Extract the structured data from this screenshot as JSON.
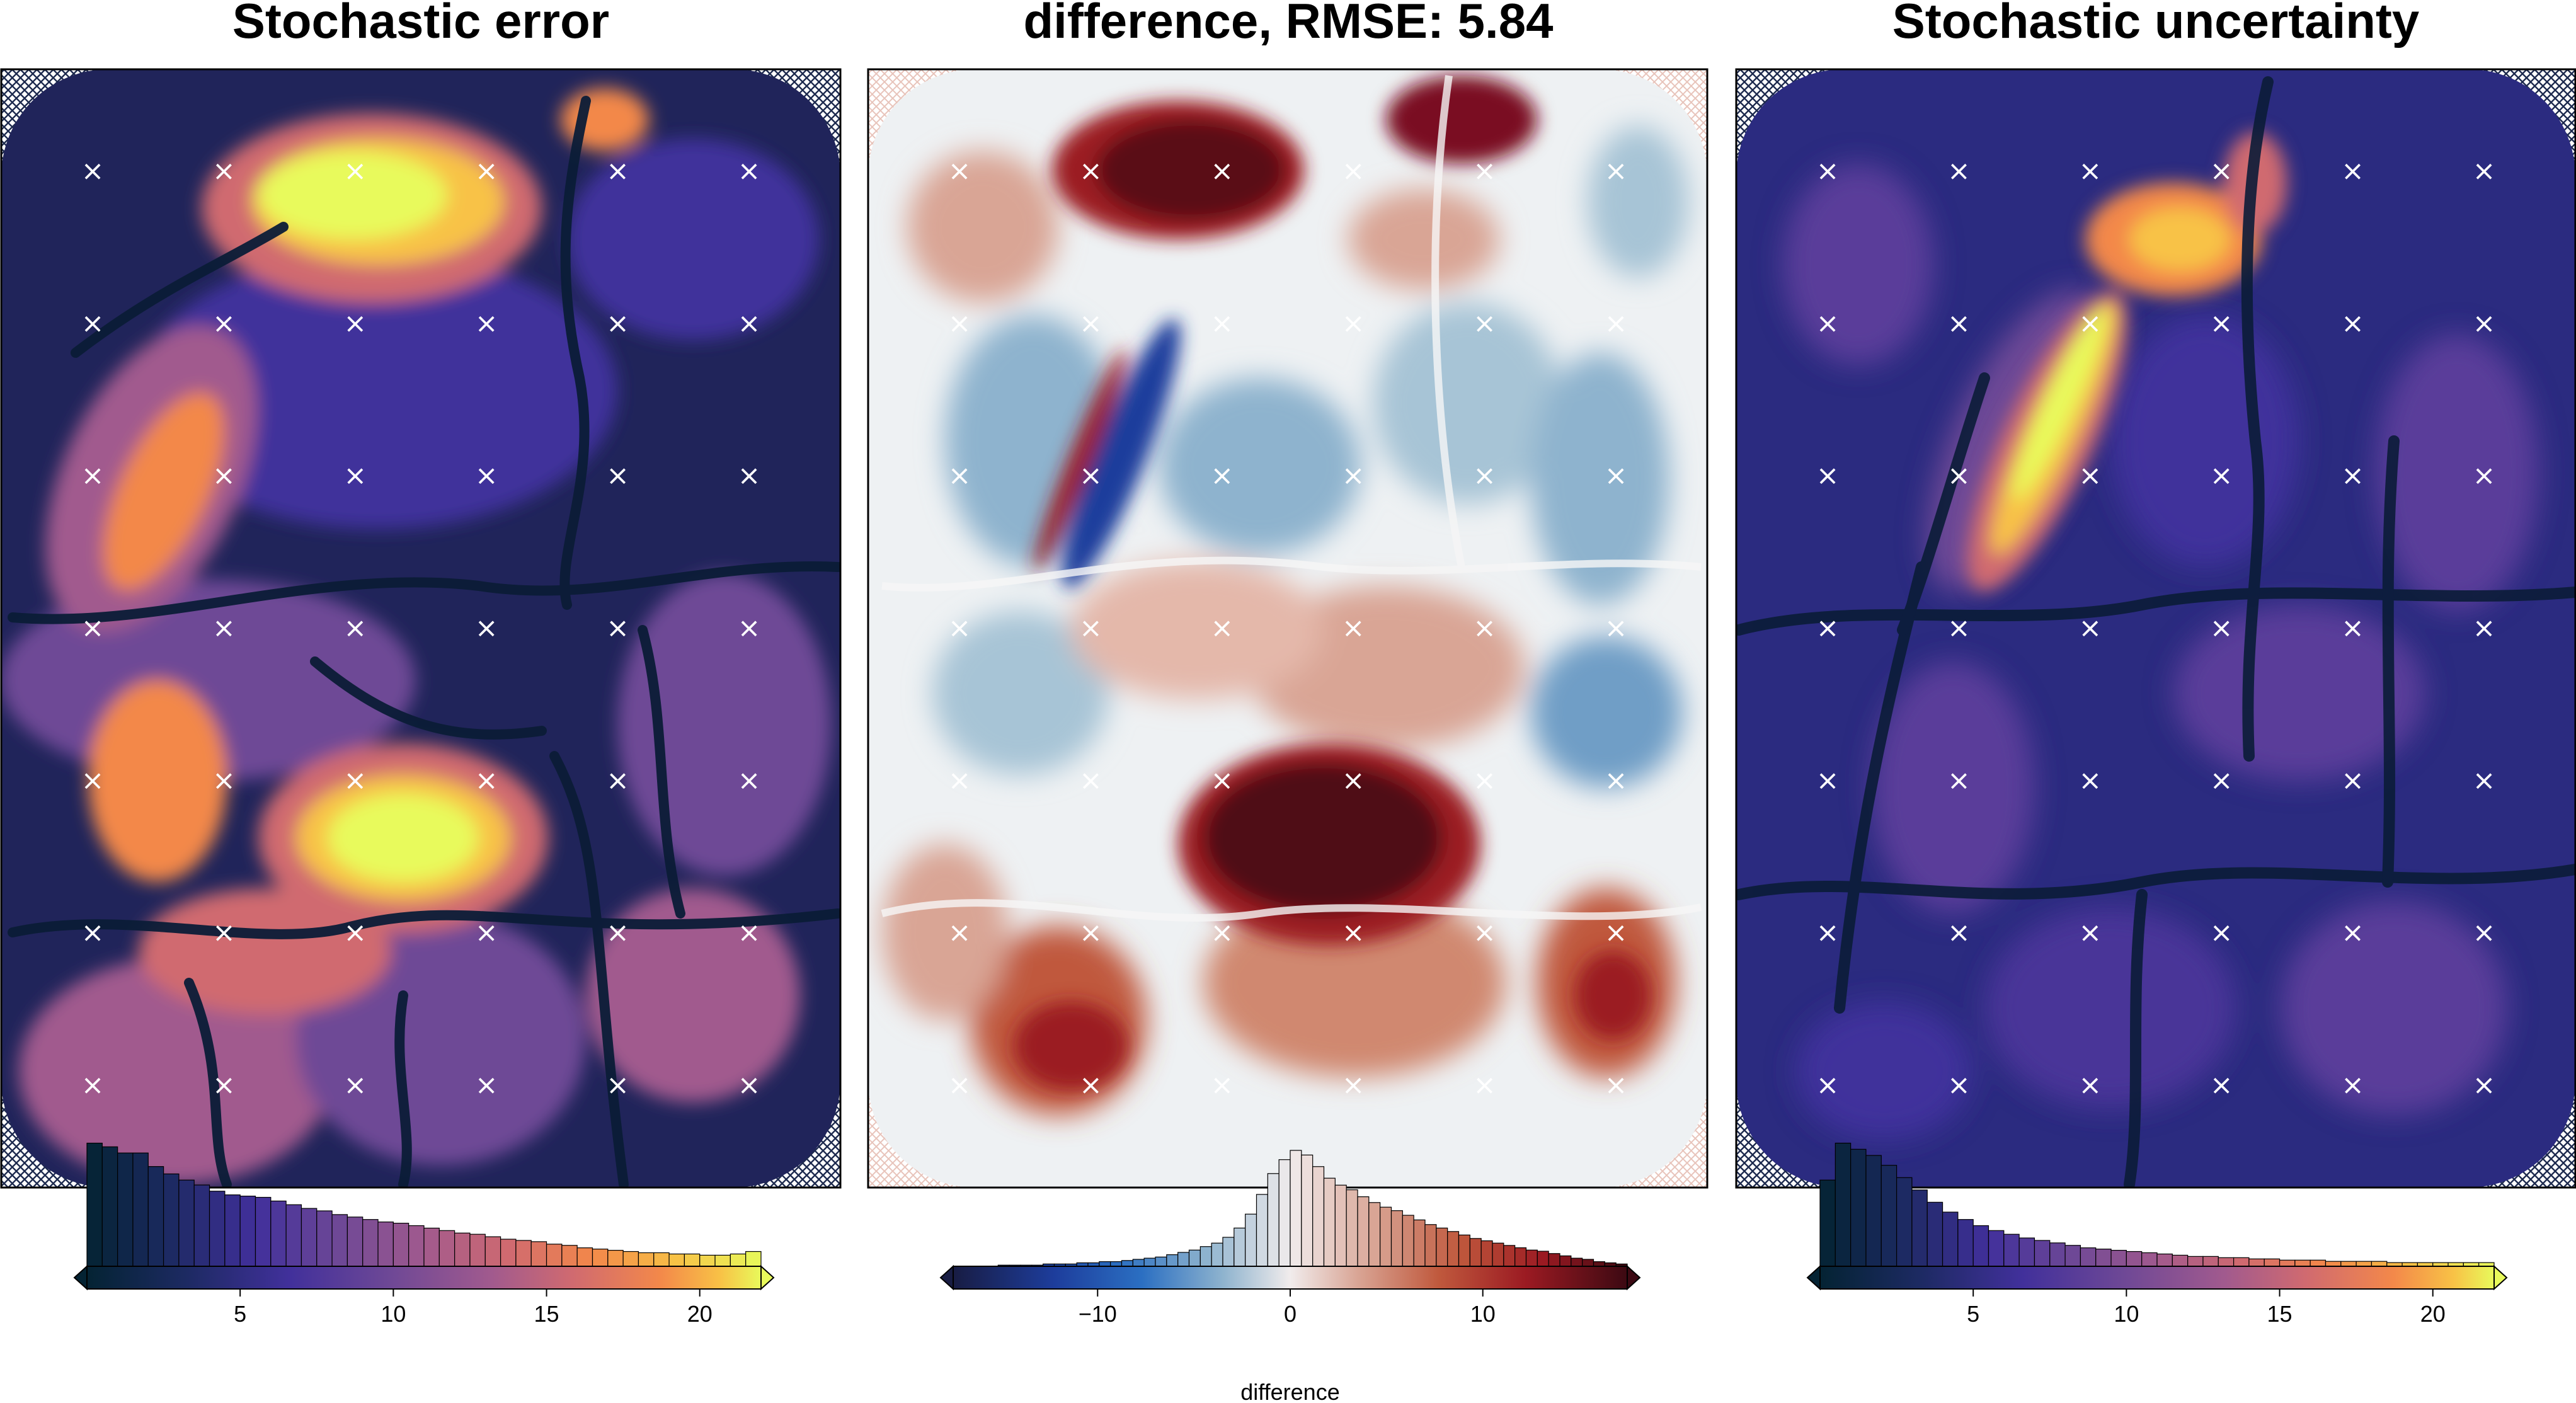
{
  "figure": {
    "panels": [
      {
        "id": "error",
        "title": "Stochastic error",
        "colormap": "thermal",
        "colorbar": {
          "range": [
            0,
            22
          ],
          "ticks": [
            5,
            10,
            15,
            20
          ],
          "tick_labels": [
            "5",
            "10",
            "15",
            "20"
          ],
          "label": ""
        },
        "histogram_bins": 44
      },
      {
        "id": "difference",
        "title": "difference, RMSE: 5.84",
        "colormap": "balance",
        "colorbar": {
          "range": [
            -17.5,
            17.5
          ],
          "ticks": [
            -10,
            0,
            10
          ],
          "tick_labels": [
            "−10",
            "0",
            "10"
          ],
          "label": "difference"
        },
        "histogram_bins": 60
      },
      {
        "id": "uncertainty",
        "title": "Stochastic uncertainty",
        "colormap": "thermal",
        "colorbar": {
          "range": [
            0,
            22
          ],
          "ticks": [
            5,
            10,
            15,
            20
          ],
          "tick_labels": [
            "5",
            "10",
            "15",
            "20"
          ],
          "label": ""
        },
        "histogram_bins": 44
      }
    ],
    "constraint_points": {
      "marker": "×",
      "columns": 6,
      "rows": 7,
      "color": "#ffffff"
    }
  },
  "chart_data": [
    {
      "type": "heatmap",
      "title": "Stochastic error",
      "colorbar_range": [
        0,
        22
      ],
      "colorbar_ticks": [
        5,
        10,
        15,
        20
      ],
      "histogram_counts": [
        100,
        97,
        92,
        92,
        81,
        75,
        70,
        66,
        61,
        58,
        57,
        56,
        53,
        50,
        47,
        45,
        42,
        40,
        38,
        36,
        35,
        33,
        31,
        29,
        27,
        26,
        24,
        22,
        21,
        20,
        18,
        17,
        15,
        14,
        13,
        12,
        11,
        11,
        10,
        10,
        9,
        9,
        10,
        12
      ]
    },
    {
      "type": "heatmap",
      "title": "difference, RMSE: 5.84",
      "colorbar_label": "difference",
      "colorbar_range": [
        -17.5,
        17.5
      ],
      "colorbar_ticks": [
        -10,
        0,
        10
      ],
      "histogram_counts": [
        0,
        0,
        0,
        0,
        1,
        1,
        1,
        1,
        2,
        2,
        2,
        3,
        3,
        4,
        4,
        5,
        6,
        7,
        8,
        10,
        12,
        14,
        17,
        20,
        25,
        33,
        45,
        62,
        80,
        92,
        100,
        96,
        86,
        76,
        70,
        66,
        60,
        55,
        51,
        48,
        44,
        40,
        36,
        33,
        30,
        27,
        24,
        22,
        20,
        18,
        16,
        14,
        13,
        11,
        9,
        7,
        6,
        4,
        3,
        2
      ]
    },
    {
      "type": "heatmap",
      "title": "Stochastic uncertainty",
      "colorbar_range": [
        0,
        22
      ],
      "colorbar_ticks": [
        5,
        10,
        15,
        20
      ],
      "histogram_counts": [
        70,
        100,
        95,
        90,
        82,
        72,
        62,
        52,
        44,
        38,
        33,
        29,
        26,
        23,
        21,
        19,
        17,
        15,
        14,
        13,
        12,
        11,
        10,
        9,
        8,
        8,
        7,
        7,
        6,
        6,
        5,
        5,
        5,
        4,
        4,
        4,
        4,
        3,
        3,
        3,
        3,
        3,
        3,
        3
      ]
    }
  ]
}
